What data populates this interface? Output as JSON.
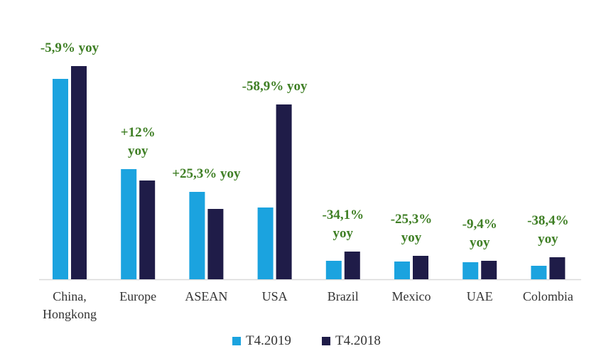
{
  "chart_data": {
    "type": "bar",
    "categories": [
      "China,\nHongkong",
      "Europe",
      "ASEAN",
      "USA",
      "Brazil",
      "Mexico",
      "UAE",
      "Colombia"
    ],
    "series": [
      {
        "name": "T4.2019",
        "color": "#1ba3df",
        "values": [
          282,
          155,
          123,
          101,
          26,
          25,
          24,
          19
        ]
      },
      {
        "name": "T4.2018",
        "color": "#1f1c48",
        "values": [
          300,
          139,
          99,
          246,
          39,
          33,
          26,
          31
        ]
      }
    ],
    "annotations": [
      "-5,9% yoy",
      "+12%\nyoy",
      "+25,3% yoy",
      "-58,9% yoy",
      "-34,1%\nyoy",
      "-25,3%\nyoy",
      "-9,4%\nyoy",
      "-38,4%\nyoy"
    ],
    "legend": "bottom"
  }
}
